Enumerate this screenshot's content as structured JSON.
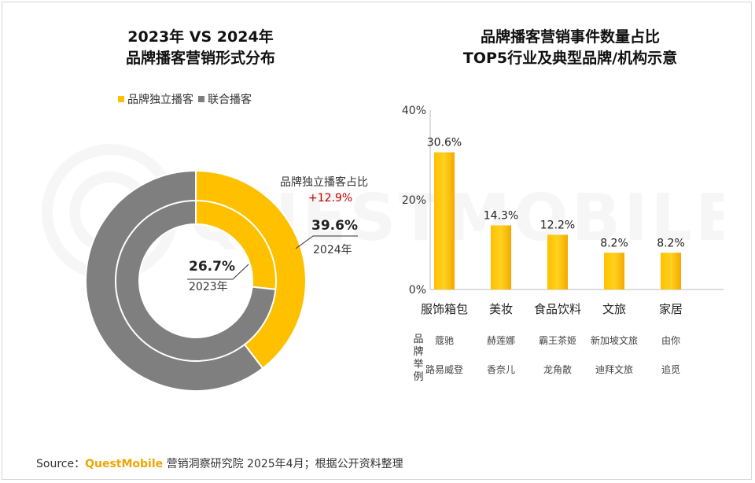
{
  "left_chart": {
    "title_line1": "2023年 VS 2024年",
    "title_line2": "品牌播客营销形式分布",
    "legend": [
      {
        "label": "品牌独立播客",
        "color": "#FFC000"
      },
      {
        "label": "联合播客",
        "color": "#7F7F7F"
      }
    ],
    "annotation_title": "品牌独立播客占比",
    "annotation_change": "+12.9%",
    "inner_value_label": "26.7%",
    "inner_year_label": "2023年",
    "outer_value_label": "39.6%",
    "outer_year_label": "2024年"
  },
  "right_chart": {
    "title_line1": "品牌播客营销事件数量占比",
    "title_line2": "TOP5行业及典型品牌/机构示意",
    "examples_label": "品牌举例"
  },
  "source": {
    "prefix": "Source：",
    "brand": "QuestMobile",
    "suffix": " 营销洞察研究院 2025年4月；根据公开资料整理"
  },
  "watermark_text": "QUESTMOBILE",
  "chart_data": [
    {
      "type": "pie",
      "subtype": "nested-donut",
      "series": [
        {
          "name": "2023年",
          "ring": "inner",
          "slices": [
            {
              "label": "品牌独立播客",
              "value": 26.7
            },
            {
              "label": "联合播客",
              "value": 73.3
            }
          ]
        },
        {
          "name": "2024年",
          "ring": "outer",
          "slices": [
            {
              "label": "品牌独立播客",
              "value": 39.6
            },
            {
              "label": "联合播客",
              "value": 60.4
            }
          ]
        }
      ],
      "colors": {
        "品牌独立播客": "#FFC000",
        "联合播客": "#7F7F7F"
      }
    },
    {
      "type": "bar",
      "categories": [
        "服饰箱包",
        "美妆",
        "食品饮料",
        "文旅",
        "家居"
      ],
      "values": [
        30.6,
        14.3,
        12.2,
        8.2,
        8.2
      ],
      "value_labels": [
        "30.6%",
        "14.3%",
        "12.2%",
        "8.2%",
        "8.2%"
      ],
      "brand_examples": [
        [
          "蔻驰",
          "路易威登"
        ],
        [
          "赫莲娜",
          "香奈儿"
        ],
        [
          "霸王茶姬",
          "龙角散"
        ],
        [
          "新加坡文旅",
          "迪拜文旅"
        ],
        [
          "由你",
          "追觅"
        ]
      ],
      "ylim": [
        0,
        40
      ],
      "yticks": [
        "0%",
        "20%",
        "40%"
      ],
      "ytick_values": [
        0,
        20,
        40
      ],
      "grid": false,
      "color": "#FFC000"
    }
  ]
}
